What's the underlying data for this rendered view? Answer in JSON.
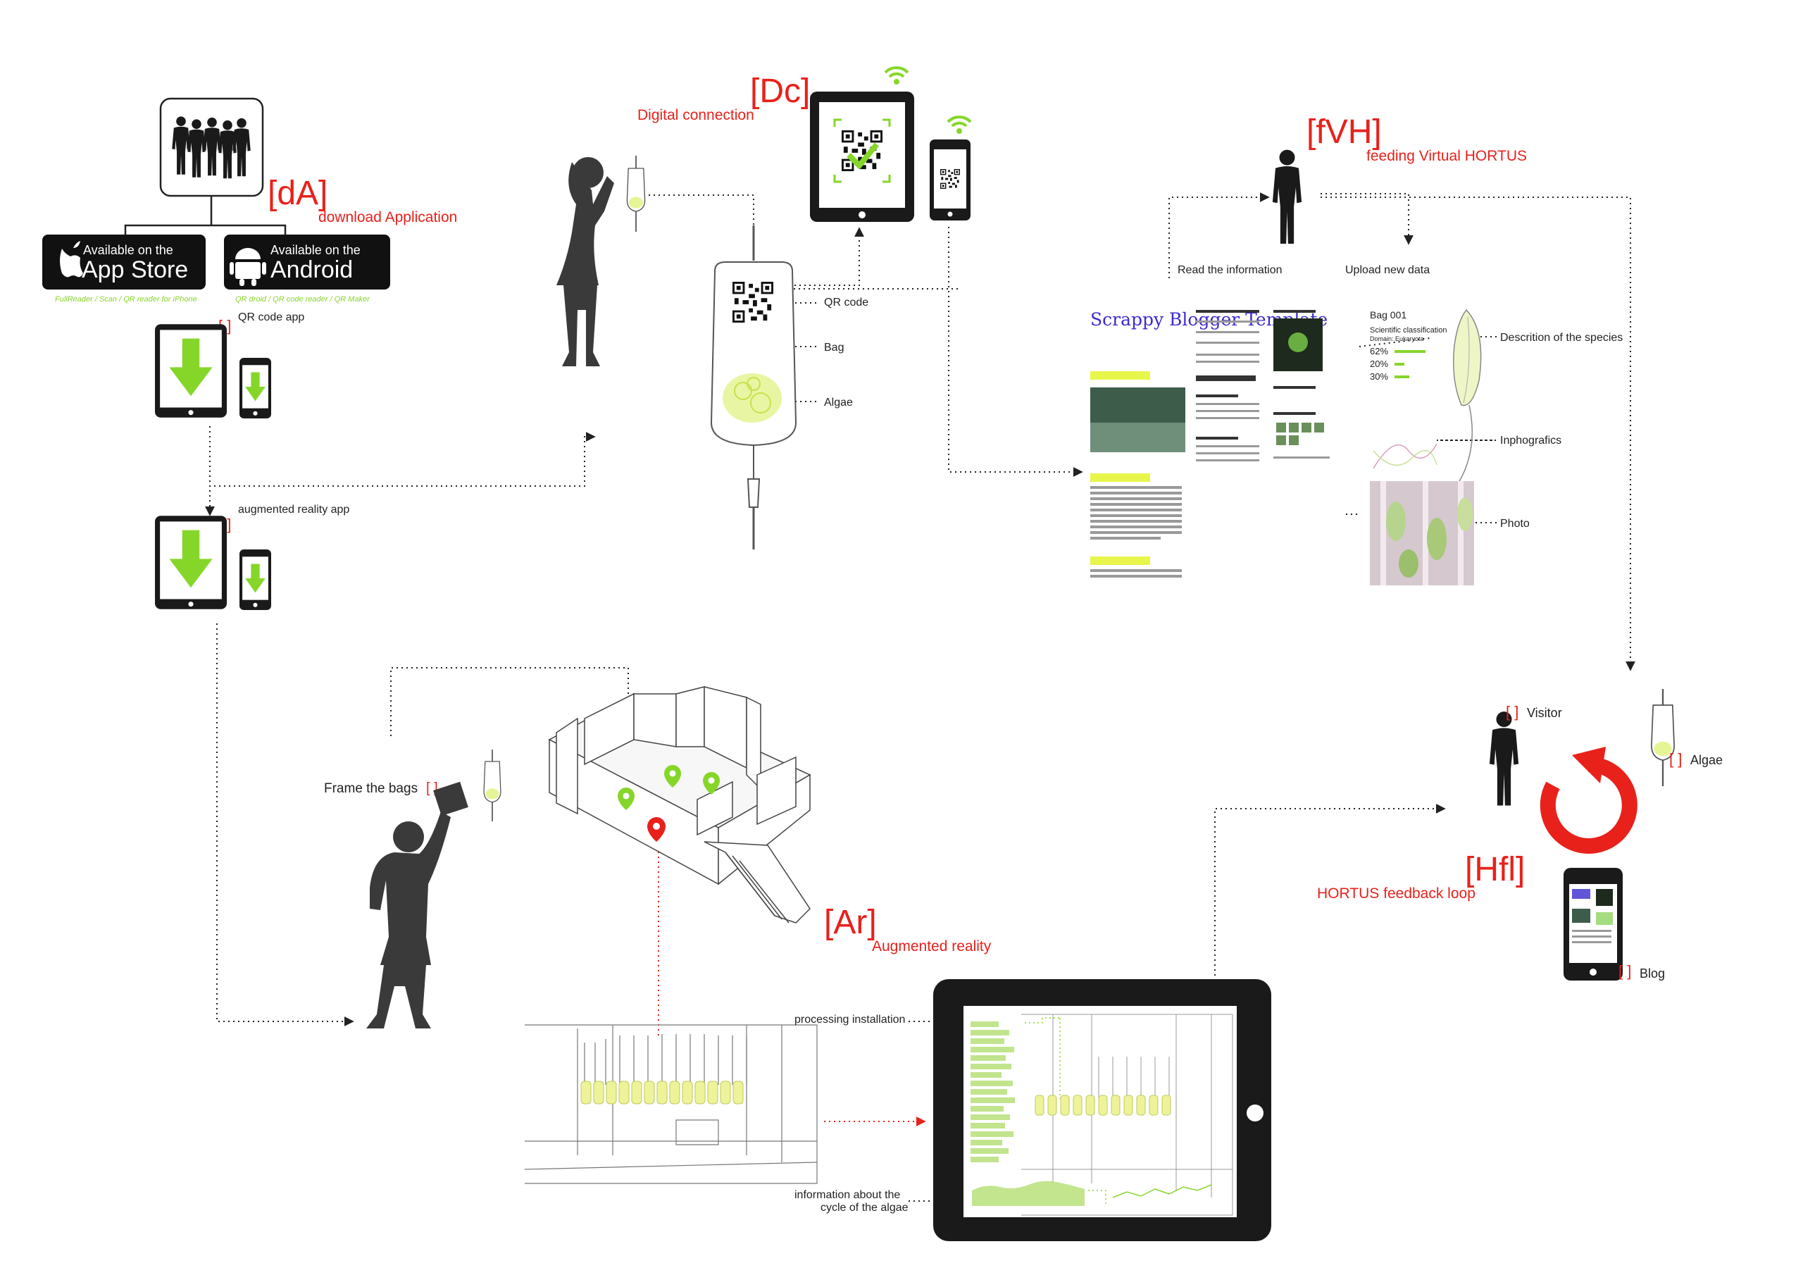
{
  "colors": {
    "accent_red": "#e8211b",
    "accent_green": "#86d62a",
    "ink": "#222222",
    "device": "#1a1a1a"
  },
  "sections": {
    "dA": {
      "code": "[dA]",
      "title": "download Application"
    },
    "Dc": {
      "code": "[Dc]",
      "title": "Digital connection"
    },
    "fVH": {
      "code": "[fVH]",
      "title": "feeding Virtual HORTUS"
    },
    "Ar": {
      "code": "[Ar]",
      "title": "Augmented reality"
    },
    "Hfl": {
      "code": "[Hfl]",
      "title": "HORTUS feedback loop"
    }
  },
  "stores": {
    "apple": {
      "line1": "Available on the",
      "line2": "App Store",
      "apps": "FullReader / Scan / QR reader for iPhone"
    },
    "android": {
      "line1": "Available on the",
      "line2": "Android",
      "apps": "QR droid / QR code reader / QR Maker"
    }
  },
  "apps": {
    "qr_label": "QR code app",
    "ar_label": "augmented reality app"
  },
  "bag": {
    "qr_label": "QR code",
    "bag_label": "Bag",
    "algae_label": "Algae"
  },
  "blog_panel": {
    "read_label": "Read the information",
    "upload_label": "Upload new data",
    "blog_title": "Scrappy Blogger Template",
    "species": {
      "bag_id": "Bag 001",
      "classification": "Scientific classification",
      "domain": "Domain: Eukaryota",
      "stats": [
        "62%",
        "20%",
        "30%"
      ]
    },
    "description_label": "Descrition of the species",
    "infographics_label": "Inphografics",
    "photo_label": "Photo"
  },
  "ar_section": {
    "frame_label": "Frame the bags",
    "processing_label": "processing installation",
    "algae_info_label_1": "information about the",
    "algae_info_label_2": "cycle of the algae"
  },
  "feedback": {
    "visitor_label": "Visitor",
    "algae_label": "Algae",
    "blog_label": "Blog"
  }
}
